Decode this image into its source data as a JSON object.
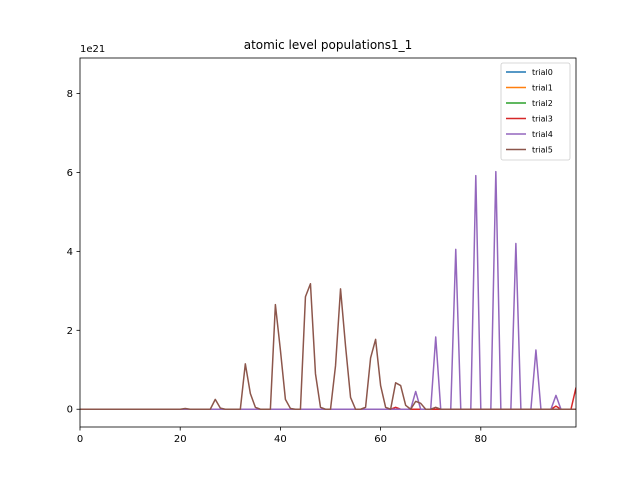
{
  "chart_data": {
    "type": "line",
    "title": "atomic level populations1_1",
    "xlabel": "",
    "ylabel": "",
    "offset_text": "1e21",
    "xlim": [
      0,
      99
    ],
    "ylim": [
      -0.45,
      8.9
    ],
    "x_ticks": [
      0,
      20,
      40,
      60,
      80
    ],
    "y_ticks": [
      0,
      2,
      4,
      6,
      8
    ],
    "x_tick_labels": [
      "0",
      "20",
      "40",
      "60",
      "80"
    ],
    "y_tick_labels": [
      "0",
      "2",
      "4",
      "6",
      "8"
    ],
    "grid": false,
    "legend_position": "top-right",
    "series": [
      {
        "name": "trial0",
        "color": "#1f77b4",
        "points": [
          [
            0,
            0
          ],
          [
            99,
            0
          ]
        ]
      },
      {
        "name": "trial1",
        "color": "#ff7f0e",
        "points": [
          [
            0,
            0
          ],
          [
            99,
            0
          ]
        ]
      },
      {
        "name": "trial2",
        "color": "#2ca02c",
        "points": [
          [
            0,
            0
          ],
          [
            99,
            0
          ]
        ]
      },
      {
        "name": "trial3",
        "color": "#d62728",
        "points": [
          [
            0,
            0
          ],
          [
            62,
            0
          ],
          [
            63,
            0.05
          ],
          [
            64,
            0
          ],
          [
            94,
            0
          ],
          [
            95,
            0.08
          ],
          [
            96,
            0
          ],
          [
            98,
            0
          ],
          [
            99,
            0.55
          ]
        ]
      },
      {
        "name": "trial4",
        "color": "#9467bd",
        "points": [
          [
            0,
            0
          ],
          [
            66,
            0
          ],
          [
            67,
            0.45
          ],
          [
            68,
            0
          ],
          [
            70,
            0
          ],
          [
            71,
            1.83
          ],
          [
            72,
            0
          ],
          [
            74,
            0
          ],
          [
            75,
            4.05
          ],
          [
            76,
            0
          ],
          [
            78,
            0
          ],
          [
            79,
            5.92
          ],
          [
            80,
            0
          ],
          [
            82,
            0
          ],
          [
            83,
            6.02
          ],
          [
            84,
            0
          ],
          [
            86,
            0
          ],
          [
            87,
            4.2
          ],
          [
            88,
            0
          ],
          [
            90,
            0
          ],
          [
            91,
            1.5
          ],
          [
            92,
            0
          ],
          [
            94,
            0
          ],
          [
            95,
            0.35
          ],
          [
            96,
            0
          ],
          [
            99,
            0
          ]
        ]
      },
      {
        "name": "trial5",
        "color": "#8c564b",
        "points": [
          [
            0,
            0
          ],
          [
            20,
            0
          ],
          [
            21,
            0.02
          ],
          [
            22,
            0
          ],
          [
            26,
            0
          ],
          [
            27,
            0.25
          ],
          [
            28,
            0.03
          ],
          [
            29,
            0
          ],
          [
            32,
            0
          ],
          [
            33,
            1.15
          ],
          [
            34,
            0.4
          ],
          [
            35,
            0.05
          ],
          [
            36,
            0
          ],
          [
            38,
            0
          ],
          [
            39,
            2.65
          ],
          [
            40,
            1.5
          ],
          [
            41,
            0.25
          ],
          [
            42,
            0.02
          ],
          [
            43,
            0
          ],
          [
            44,
            0
          ],
          [
            45,
            2.85
          ],
          [
            46,
            3.18
          ],
          [
            47,
            0.9
          ],
          [
            48,
            0.05
          ],
          [
            49,
            0
          ],
          [
            50,
            0
          ],
          [
            51,
            1.1
          ],
          [
            52,
            3.05
          ],
          [
            53,
            1.6
          ],
          [
            54,
            0.3
          ],
          [
            55,
            0
          ],
          [
            56,
            0
          ],
          [
            57,
            0.05
          ],
          [
            58,
            1.3
          ],
          [
            59,
            1.77
          ],
          [
            60,
            0.6
          ],
          [
            61,
            0.05
          ],
          [
            62,
            0
          ],
          [
            63,
            0.67
          ],
          [
            64,
            0.6
          ],
          [
            65,
            0.1
          ],
          [
            66,
            0
          ],
          [
            67,
            0.2
          ],
          [
            68,
            0.15
          ],
          [
            69,
            0
          ],
          [
            70,
            0
          ],
          [
            71,
            0.05
          ],
          [
            72,
            0
          ],
          [
            99,
            0
          ]
        ]
      }
    ]
  }
}
